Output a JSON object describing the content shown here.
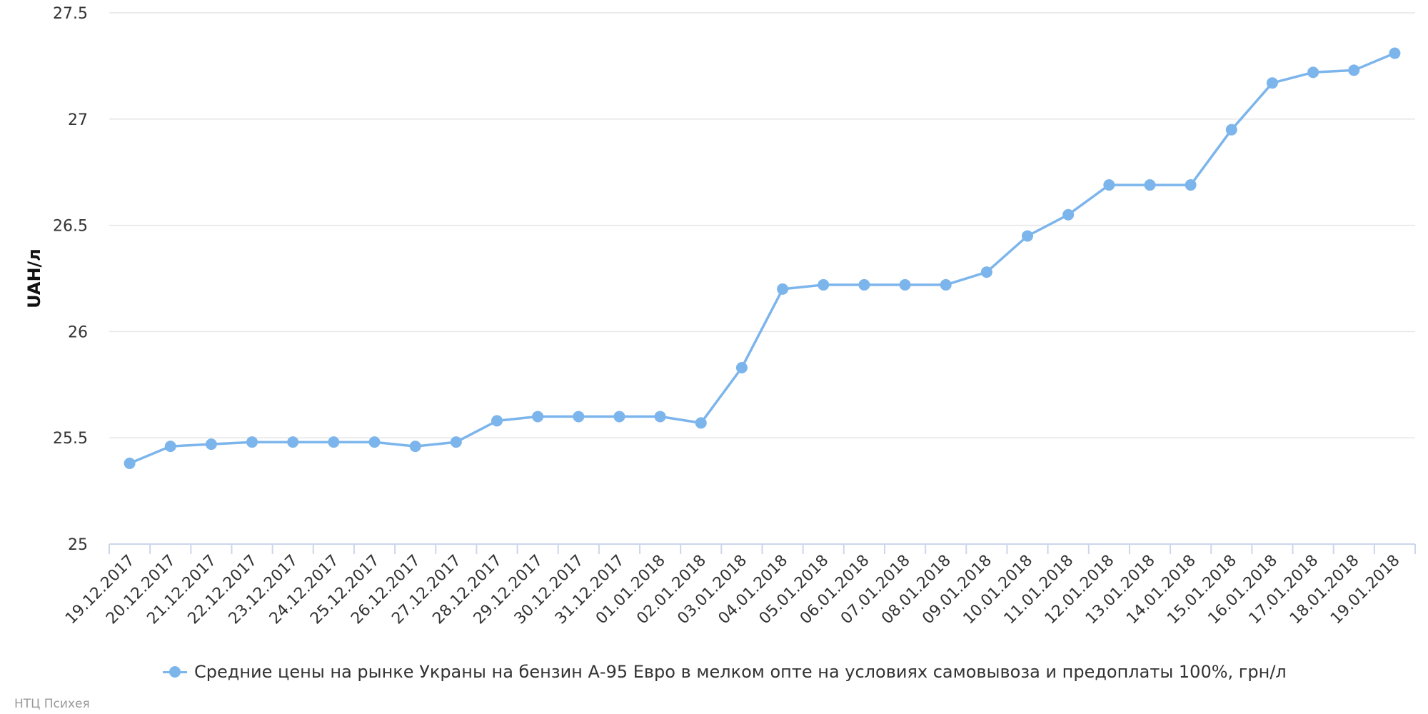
{
  "chart_data": {
    "type": "line",
    "categories": [
      "19.12.2017",
      "20.12.2017",
      "21.12.2017",
      "22.12.2017",
      "23.12.2017",
      "24.12.2017",
      "25.12.2017",
      "26.12.2017",
      "27.12.2017",
      "28.12.2017",
      "29.12.2017",
      "30.12.2017",
      "31.12.2017",
      "01.01.2018",
      "02.01.2018",
      "03.01.2018",
      "04.01.2018",
      "05.01.2018",
      "06.01.2018",
      "07.01.2018",
      "08.01.2018",
      "09.01.2018",
      "10.01.2018",
      "11.01.2018",
      "12.01.2018",
      "13.01.2018",
      "14.01.2018",
      "15.01.2018",
      "16.01.2018",
      "17.01.2018",
      "18.01.2018",
      "19.01.2018"
    ],
    "series": [
      {
        "name": "Средние цены на рынке Украны на бензин А-95 Евро в мелком опте на условиях самовывоза и предоплаты 100%, грн/л",
        "values": [
          25.38,
          25.46,
          25.47,
          25.48,
          25.48,
          25.48,
          25.48,
          25.46,
          25.48,
          25.58,
          25.6,
          25.6,
          25.6,
          25.6,
          25.57,
          25.83,
          26.2,
          26.22,
          26.22,
          26.22,
          26.22,
          26.28,
          26.45,
          26.55,
          26.69,
          26.69,
          26.69,
          26.95,
          27.17,
          27.22,
          27.23,
          27.31
        ],
        "color": "#7cb5ec"
      }
    ],
    "title": "",
    "xlabel": "",
    "ylabel": "UAH/л",
    "ylim": [
      25,
      27.5
    ],
    "yticks": [
      "25",
      "25.5",
      "26",
      "26.5",
      "27",
      "27.5"
    ],
    "grid": true,
    "legend": "bottom-center"
  },
  "credits": "НТЦ Психея",
  "colors": {
    "series": "#7cb5ec",
    "grid": "#e6e6e6",
    "axis": "#ccd6eb"
  }
}
